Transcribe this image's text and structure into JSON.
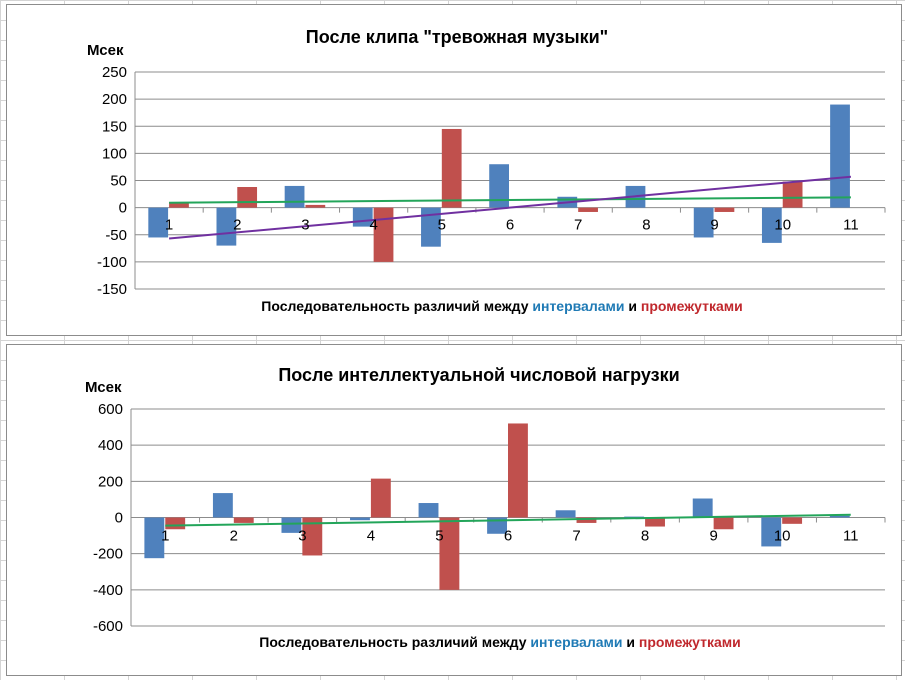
{
  "colors": {
    "series_intervals": "#4F81BD",
    "series_gaps": "#C0504D",
    "trend_green": "#23A55A",
    "trend_purple": "#7030A0",
    "word_intervals": "#1F7AB5",
    "word_gaps": "#C0282D",
    "gridline": "#8c8c8c"
  },
  "chart_data": [
    {
      "type": "bar",
      "title": "После клипа \"тревожная музыки\"",
      "ylabel": "Мсек",
      "xlabel": {
        "prefix": "Последовательность различий между ",
        "word_intervals": "интервалами",
        "conjunction": " и ",
        "word_gaps": "промежутками"
      },
      "categories": [
        "1",
        "2",
        "3",
        "4",
        "5",
        "6",
        "7",
        "8",
        "9",
        "10",
        "11"
      ],
      "ylim": [
        -150,
        250
      ],
      "yticks": [
        250,
        200,
        150,
        100,
        50,
        0,
        -50,
        -100,
        -150
      ],
      "grid": true,
      "series": [
        {
          "values": [
            -55,
            -70,
            40,
            -35,
            -72,
            80,
            20,
            40,
            -55,
            -65,
            190
          ]
        },
        {
          "values": [
            10,
            38,
            5,
            -100,
            145,
            0,
            -8,
            0,
            -8,
            48,
            0
          ]
        }
      ],
      "trendlines": [
        {
          "color": "trend_green",
          "from": [
            1,
            9
          ],
          "to": [
            11,
            19
          ]
        },
        {
          "color": "trend_purple",
          "from": [
            1,
            -57
          ],
          "to": [
            11,
            57
          ]
        }
      ]
    },
    {
      "type": "bar",
      "title": "После интеллектуальной числовой нагрузки",
      "ylabel": "Мсек",
      "xlabel": {
        "prefix": "Последовательность различий между ",
        "word_intervals": "интервалами",
        "conjunction": " и ",
        "word_gaps": "промежутками"
      },
      "categories": [
        "1",
        "2",
        "3",
        "4",
        "5",
        "6",
        "7",
        "8",
        "9",
        "10",
        "11"
      ],
      "ylim": [
        -600,
        600
      ],
      "yticks": [
        600,
        400,
        200,
        0,
        -200,
        -400,
        -600
      ],
      "grid": true,
      "series": [
        {
          "values": [
            -225,
            135,
            -85,
            -15,
            80,
            -90,
            40,
            5,
            105,
            -160,
            10
          ]
        },
        {
          "values": [
            -65,
            -30,
            -210,
            215,
            -400,
            520,
            -30,
            -50,
            -65,
            -35,
            0
          ]
        }
      ],
      "trendlines": [
        {
          "color": "trend_green",
          "from": [
            1,
            -45
          ],
          "to": [
            11,
            15
          ]
        }
      ]
    }
  ]
}
